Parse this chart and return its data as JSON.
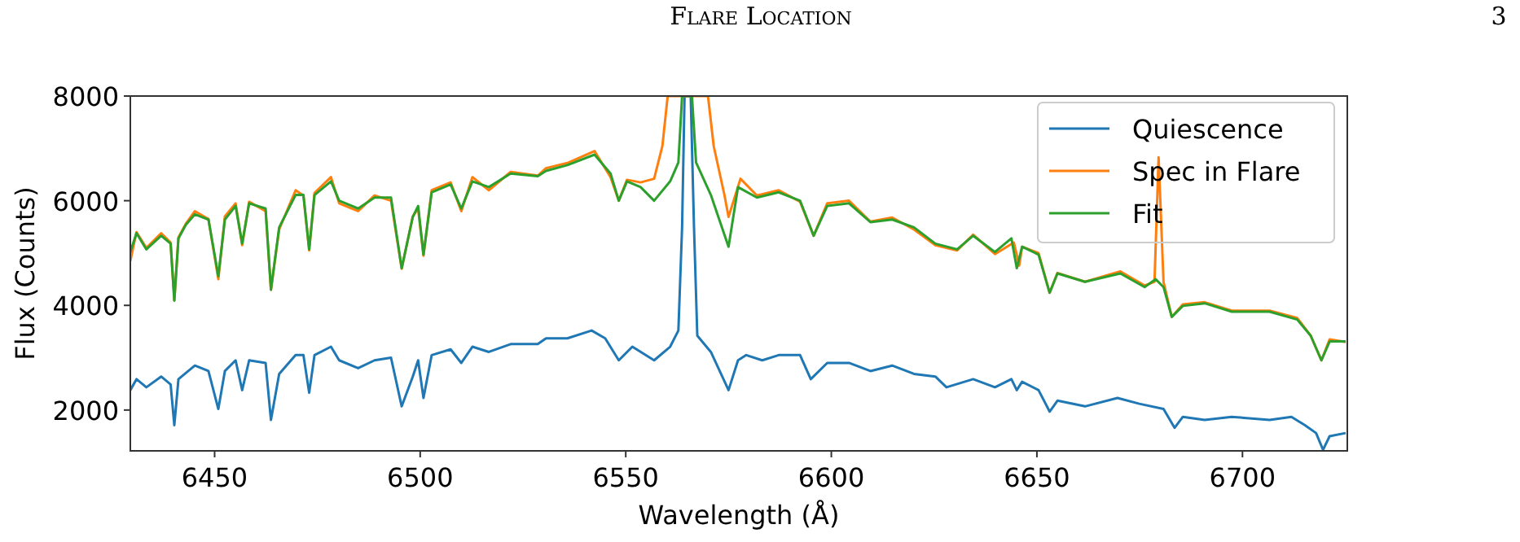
{
  "chart_data": {
    "type": "line",
    "xlabel": "Wavelength (Å)",
    "ylabel": "Flux (Counts)",
    "annotations": [
      "Flare Location",
      "3"
    ],
    "xlim": [
      6429.5,
      6725.5
    ],
    "ylim": [
      1220,
      8000
    ],
    "xticks": [
      6450,
      6500,
      6550,
      6600,
      6650,
      6700
    ],
    "yticks": [
      2000,
      4000,
      6000,
      8000
    ],
    "grid": false,
    "legend": "top right",
    "marker": "none",
    "line_style": "solid",
    "series": [
      {
        "name": "Quiescence",
        "color": "#1f77b4",
        "x": [
          6429.5,
          6431,
          6433.4,
          6437,
          6439.3,
          6440.2,
          6441.2,
          6445.2,
          6448.5,
          6450.9,
          6452.5,
          6455.1,
          6456.7,
          6458.4,
          6462.4,
          6463.7,
          6465.7,
          6469.7,
          6471.6,
          6473,
          6474.3,
          6478.3,
          6480.3,
          6484.9,
          6488.9,
          6492.9,
          6495.5,
          6498.2,
          6499.5,
          6500.8,
          6502.8,
          6507.4,
          6510,
          6512.7,
          6516.7,
          6522,
          6528.6,
          6530.6,
          6535.8,
          6541.7,
          6545,
          6548.3,
          6551.6,
          6556.9,
          6560.8,
          6562.8,
          6563.7,
          6564.3,
          6565.8,
          6566.6,
          6567.4,
          6570.7,
          6575,
          6577.3,
          6579.3,
          6583.2,
          6587.2,
          6592.4,
          6595,
          6599,
          6604.3,
          6609.5,
          6614.8,
          6620.1,
          6625.3,
          6628,
          6634.5,
          6639.8,
          6643.8,
          6645.1,
          6646.4,
          6650.4,
          6653.1,
          6655,
          6661.7,
          6669.6,
          6674.9,
          6680.8,
          6683.5,
          6685.5,
          6690.8,
          6697.4,
          6706.6,
          6711.9,
          6715.2,
          6717.9,
          6719.6,
          6721.2,
          6725.1
        ],
        "values": [
          2380,
          2590,
          2435,
          2640,
          2490,
          1710,
          2590,
          2850,
          2745,
          2020,
          2745,
          2950,
          2380,
          2950,
          2900,
          1810,
          2690,
          3050,
          3050,
          2330,
          3050,
          3210,
          2950,
          2800,
          2950,
          3000,
          2070,
          2640,
          2950,
          2230,
          3050,
          3160,
          2900,
          3210,
          3110,
          3260,
          3260,
          3370,
          3370,
          3520,
          3370,
          2950,
          3210,
          2950,
          3210,
          3520,
          5490,
          8000,
          8000,
          5490,
          3420,
          3110,
          2380,
          2950,
          3050,
          2950,
          3050,
          3050,
          2590,
          2900,
          2900,
          2745,
          2850,
          2690,
          2640,
          2435,
          2590,
          2435,
          2590,
          2380,
          2540,
          2380,
          1970,
          2180,
          2070,
          2230,
          2120,
          2020,
          1660,
          1870,
          1810,
          1870,
          1810,
          1870,
          1710,
          1560,
          1240,
          1500,
          1560
        ]
      },
      {
        "name": "Spec in Flare",
        "color": "#ff7f0e",
        "x": [
          6429.5,
          6431,
          6433.4,
          6437,
          6439.3,
          6440.2,
          6441.2,
          6443,
          6445.2,
          6448.5,
          6450.9,
          6452.5,
          6455.1,
          6456.7,
          6458.4,
          6462.4,
          6463.7,
          6465.7,
          6469.7,
          6471.6,
          6473,
          6474.3,
          6478.3,
          6480.3,
          6484.9,
          6488.9,
          6492.9,
          6495.5,
          6498.2,
          6499.5,
          6500.8,
          6502.8,
          6507.4,
          6510,
          6512.7,
          6516.7,
          6522,
          6528.6,
          6530.6,
          6535.8,
          6542.4,
          6546.3,
          6548.3,
          6550.3,
          6553.6,
          6556.9,
          6558.9,
          6560.2,
          6570,
          6571.4,
          6574,
          6575,
          6577.9,
          6581.9,
          6587.2,
          6592.4,
          6595.7,
          6599,
          6604.3,
          6609.5,
          6614.8,
          6620.1,
          6625.3,
          6630.6,
          6634.5,
          6639.8,
          6644.4,
          6645.7,
          6646.4,
          6650.4,
          6653.1,
          6655,
          6661.7,
          6670.3,
          6676.2,
          6678.6,
          6679.6,
          6680.8,
          6682.8,
          6685.5,
          6690.8,
          6697.4,
          6706.6,
          6713.3,
          6716.6,
          6719.2,
          6721.2,
          6725.1
        ],
        "values": [
          4850,
          5400,
          5100,
          5380,
          5200,
          4100,
          5300,
          5560,
          5800,
          5650,
          4500,
          5700,
          5950,
          5150,
          5980,
          5800,
          4300,
          5450,
          6200,
          6100,
          5050,
          6150,
          6450,
          5950,
          5800,
          6100,
          6000,
          4700,
          5700,
          5850,
          4950,
          6200,
          6350,
          5800,
          6450,
          6200,
          6550,
          6480,
          6620,
          6720,
          6950,
          6450,
          6000,
          6400,
          6350,
          6420,
          7040,
          8000,
          8000,
          7040,
          6110,
          5690,
          6420,
          6100,
          6200,
          5980,
          5330,
          5950,
          6000,
          5600,
          5680,
          5450,
          5150,
          5050,
          5350,
          4980,
          5200,
          4760,
          5120,
          5000,
          4240,
          4620,
          4450,
          4650,
          4380,
          4450,
          6830,
          4450,
          3780,
          4020,
          4060,
          3900,
          3900,
          3760,
          3420,
          2950,
          3350,
          3300
        ]
      },
      {
        "name": "Fit",
        "color": "#2ca02c",
        "x": [
          6429.5,
          6431,
          6433.4,
          6437,
          6439.3,
          6440.2,
          6441.2,
          6443,
          6445.2,
          6448.5,
          6450.9,
          6452.5,
          6455.1,
          6456.7,
          6458.4,
          6462.4,
          6463.7,
          6465.7,
          6469.7,
          6471.6,
          6473,
          6474.3,
          6478.3,
          6480.3,
          6484.9,
          6488.9,
          6492.9,
          6495.5,
          6498.2,
          6499.5,
          6500.8,
          6502.8,
          6507.4,
          6510,
          6512.7,
          6516.7,
          6522,
          6528.6,
          6530.6,
          6535.8,
          6542.4,
          6546.3,
          6548.3,
          6550.3,
          6553.6,
          6556.9,
          6560.8,
          6562.8,
          6563.7,
          6566.1,
          6567.1,
          6570.7,
          6575,
          6577.3,
          6581.9,
          6587.2,
          6592.4,
          6595.7,
          6599,
          6604.3,
          6609.5,
          6614.8,
          6620.1,
          6625.3,
          6630.6,
          6634.5,
          6639.8,
          6643.8,
          6645.1,
          6646.4,
          6650.4,
          6653.1,
          6655,
          6661.7,
          6670.3,
          6676.2,
          6678.9,
          6680.8,
          6682.8,
          6685.5,
          6690.8,
          6697.4,
          6706.6,
          6713.3,
          6716.6,
          6719.2,
          6721.2,
          6725.1
        ],
        "values": [
          5020,
          5380,
          5070,
          5330,
          5180,
          4090,
          5280,
          5540,
          5740,
          5640,
          4560,
          5640,
          5900,
          5180,
          5950,
          5850,
          4300,
          5490,
          6110,
          6110,
          5070,
          6110,
          6370,
          6000,
          5850,
          6060,
          6060,
          4710,
          5690,
          5900,
          4970,
          6160,
          6310,
          5850,
          6370,
          6260,
          6520,
          6470,
          6570,
          6680,
          6880,
          6520,
          6000,
          6370,
          6260,
          6000,
          6370,
          6730,
          8000,
          8000,
          6730,
          6110,
          5120,
          6260,
          6060,
          6160,
          6000,
          5330,
          5900,
          5950,
          5590,
          5640,
          5490,
          5180,
          5070,
          5330,
          5020,
          5280,
          4710,
          5120,
          4970,
          4240,
          4610,
          4450,
          4610,
          4350,
          4500,
          4350,
          3780,
          3990,
          4040,
          3880,
          3880,
          3730,
          3420,
          2950,
          3310,
          3310
        ]
      }
    ]
  }
}
